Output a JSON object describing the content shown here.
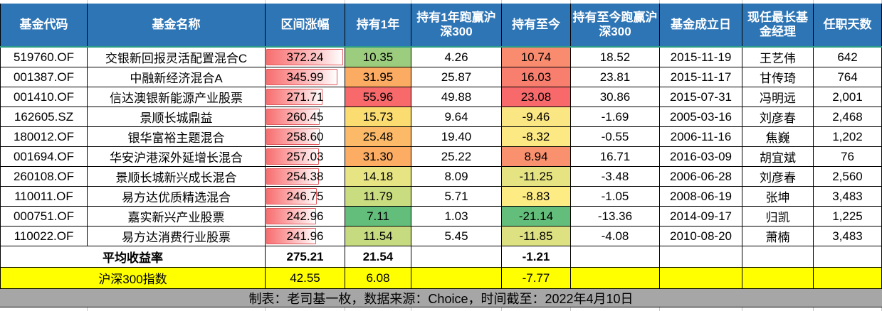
{
  "table": {
    "columns": [
      {
        "id": "fund-code",
        "label": "基金代码"
      },
      {
        "id": "fund-name",
        "label": "基金名称"
      },
      {
        "id": "range-gain",
        "label": "区间涨幅"
      },
      {
        "id": "hold-1y",
        "label": "持有1年"
      },
      {
        "id": "beat-1y",
        "label": "持有1年跑赢沪深300"
      },
      {
        "id": "hold-now",
        "label": "持有至今"
      },
      {
        "id": "beat-now",
        "label": "持有至今跑赢沪深300"
      },
      {
        "id": "inception-date",
        "label": "基金成立日"
      },
      {
        "id": "manager",
        "label": "现任最长基金经理"
      },
      {
        "id": "tenure-days",
        "label": "任职天数"
      }
    ],
    "rows": [
      {
        "code": "519760.OF",
        "name": "交银新回报灵活配置混合C",
        "range_gain": "372.24",
        "bar_pct": 97,
        "hold_1y": "10.35",
        "hold_1y_bg": "#9CCD7E",
        "beat_1y": "4.26",
        "hold_now": "10.74",
        "hold_now_bg": "#F98B6F",
        "beat_now": "18.52",
        "inception": "2015-11-19",
        "manager": "王艺伟",
        "days": "642"
      },
      {
        "code": "001387.OF",
        "name": "中融新经济混合A",
        "range_gain": "345.99",
        "bar_pct": 90,
        "hold_1y": "31.95",
        "hold_1y_bg": "#FCAB63",
        "beat_1y": "25.87",
        "hold_now": "16.03",
        "hold_now_bg": "#F87E6D",
        "beat_now": "23.81",
        "inception": "2015-11-17",
        "manager": "甘传琦",
        "days": "764"
      },
      {
        "code": "001410.OF",
        "name": "信达澳银新能源产业股票",
        "range_gain": "271.71",
        "bar_pct": 71,
        "hold_1y": "55.96",
        "hold_1y_bg": "#F8696B",
        "beat_1y": "49.88",
        "hold_now": "23.08",
        "hold_now_bg": "#F8696B",
        "beat_now": "30.86",
        "inception": "2015-07-31",
        "manager": "冯明远",
        "days": "2,001"
      },
      {
        "code": "162605.SZ",
        "name": "景顺长城鼎益",
        "range_gain": "260.45",
        "bar_pct": 68,
        "hold_1y": "15.73",
        "hold_1y_bg": "#FBDC71",
        "beat_1y": "9.64",
        "hold_now": "-9.46",
        "hold_now_bg": "#FBE684",
        "beat_now": "-1.69",
        "inception": "2005-03-16",
        "manager": "刘彦春",
        "days": "2,468"
      },
      {
        "code": "180012.OF",
        "name": "银华富裕主题混合",
        "range_gain": "258.60",
        "bar_pct": 67.5,
        "hold_1y": "25.48",
        "hold_1y_bg": "#FCBA68",
        "beat_1y": "19.40",
        "hold_now": "-8.32",
        "hold_now_bg": "#FDE984",
        "beat_now": "-0.55",
        "inception": "2006-11-16",
        "manager": "焦巍",
        "days": "1,202"
      },
      {
        "code": "001694.OF",
        "name": "华安沪港深外延增长混合",
        "range_gain": "257.03",
        "bar_pct": 67,
        "hold_1y": "31.30",
        "hold_1y_bg": "#FCAD63",
        "beat_1y": "25.22",
        "hold_now": "8.94",
        "hold_now_bg": "#F9916F",
        "beat_now": "16.71",
        "inception": "2016-03-09",
        "manager": "胡宜斌",
        "days": "76"
      },
      {
        "code": "260108.OF",
        "name": "景顺长城新兴成长混合",
        "range_gain": "254.38",
        "bar_pct": 66.3,
        "hold_1y": "14.18",
        "hold_1y_bg": "#E7E583",
        "beat_1y": "8.09",
        "hold_now": "-11.25",
        "hold_now_bg": "#E6E482",
        "beat_now": "-3.48",
        "inception": "2006-06-28",
        "manager": "刘彦春",
        "days": "2,560"
      },
      {
        "code": "110011.OF",
        "name": "易方达优质精选混合",
        "range_gain": "246.75",
        "bar_pct": 64.3,
        "hold_1y": "11.79",
        "hold_1y_bg": "#C9DC80",
        "beat_1y": "5.71",
        "hold_now": "-8.83",
        "hold_now_bg": "#FDEB84",
        "beat_now": "-1.05",
        "inception": "2008-06-19",
        "manager": "张坤",
        "days": "3,483"
      },
      {
        "code": "000751.OF",
        "name": "嘉实新兴产业股票",
        "range_gain": "242.96",
        "bar_pct": 63.3,
        "hold_1y": "7.11",
        "hold_1y_bg": "#63BE7B",
        "beat_1y": "1.03",
        "hold_now": "-21.14",
        "hold_now_bg": "#63BE7B",
        "beat_now": "-13.36",
        "inception": "2014-09-17",
        "manager": "归凯",
        "days": "1,225"
      },
      {
        "code": "110022.OF",
        "name": "易方达消费行业股票",
        "range_gain": "241.96",
        "bar_pct": 63,
        "hold_1y": "11.54",
        "hold_1y_bg": "#C6DB80",
        "beat_1y": "5.45",
        "hold_now": "-11.85",
        "hold_now_bg": "#DDE182",
        "beat_now": "-4.08",
        "inception": "2010-08-20",
        "manager": "萧楠",
        "days": "3,483"
      }
    ],
    "summary_row": {
      "label": "平均收益率",
      "range_gain": "275.21",
      "hold_1y": "21.54",
      "hold_now": "-1.21"
    },
    "index_row": {
      "label": "沪深300指数",
      "range_gain": "42.55",
      "hold_1y": "6.08",
      "hold_now": "-7.77"
    },
    "footer": "制表：老司基一枚，数据来源：Choice，时间截至：2022年4月10日"
  },
  "colors": {
    "header_bg": "#2E75B6",
    "header_text": "#FFFFFF",
    "accent_line": "#2D9B87",
    "index_row_bg": "#FFFF00",
    "footer_bg": "#A6A6A6",
    "bar_border": "#E35A5E",
    "bar_fill_start": "#F76F70",
    "scale_red": "#F8696B",
    "scale_yellow": "#FFEB84",
    "scale_green": "#63BE7B"
  }
}
